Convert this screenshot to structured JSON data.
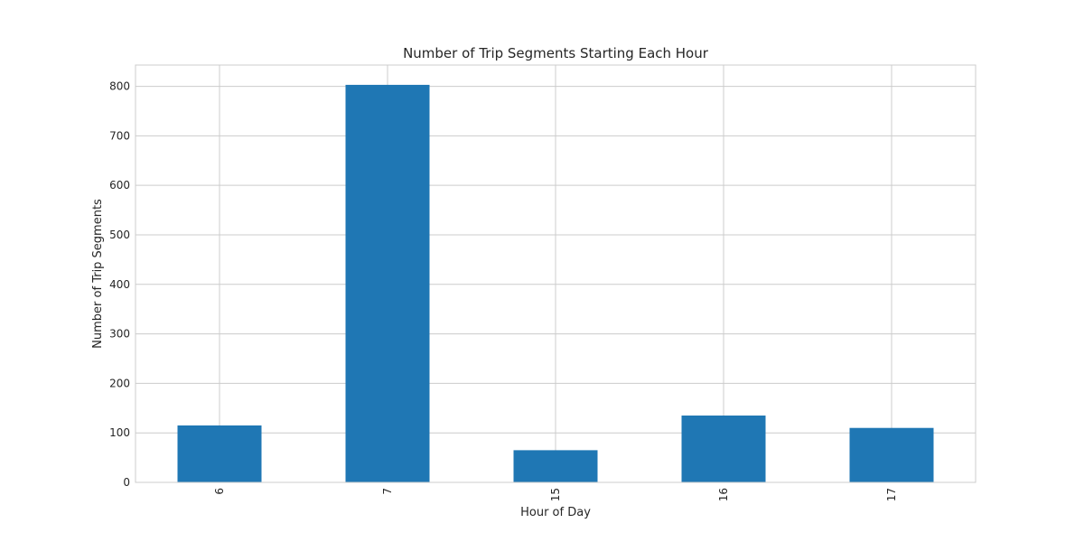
{
  "chart_data": {
    "type": "bar",
    "title": "Number of Trip Segments Starting Each Hour",
    "xlabel": "Hour of Day",
    "ylabel": "Number of Trip Segments",
    "categories": [
      "6",
      "7",
      "15",
      "16",
      "17"
    ],
    "values": [
      115,
      803,
      65,
      135,
      110
    ],
    "ylim": [
      0,
      843
    ],
    "yticks": [
      0,
      100,
      200,
      300,
      400,
      500,
      600,
      700,
      800
    ],
    "grid": true,
    "bar_color": "#1f77b4",
    "tick_rotation": "vertical"
  }
}
